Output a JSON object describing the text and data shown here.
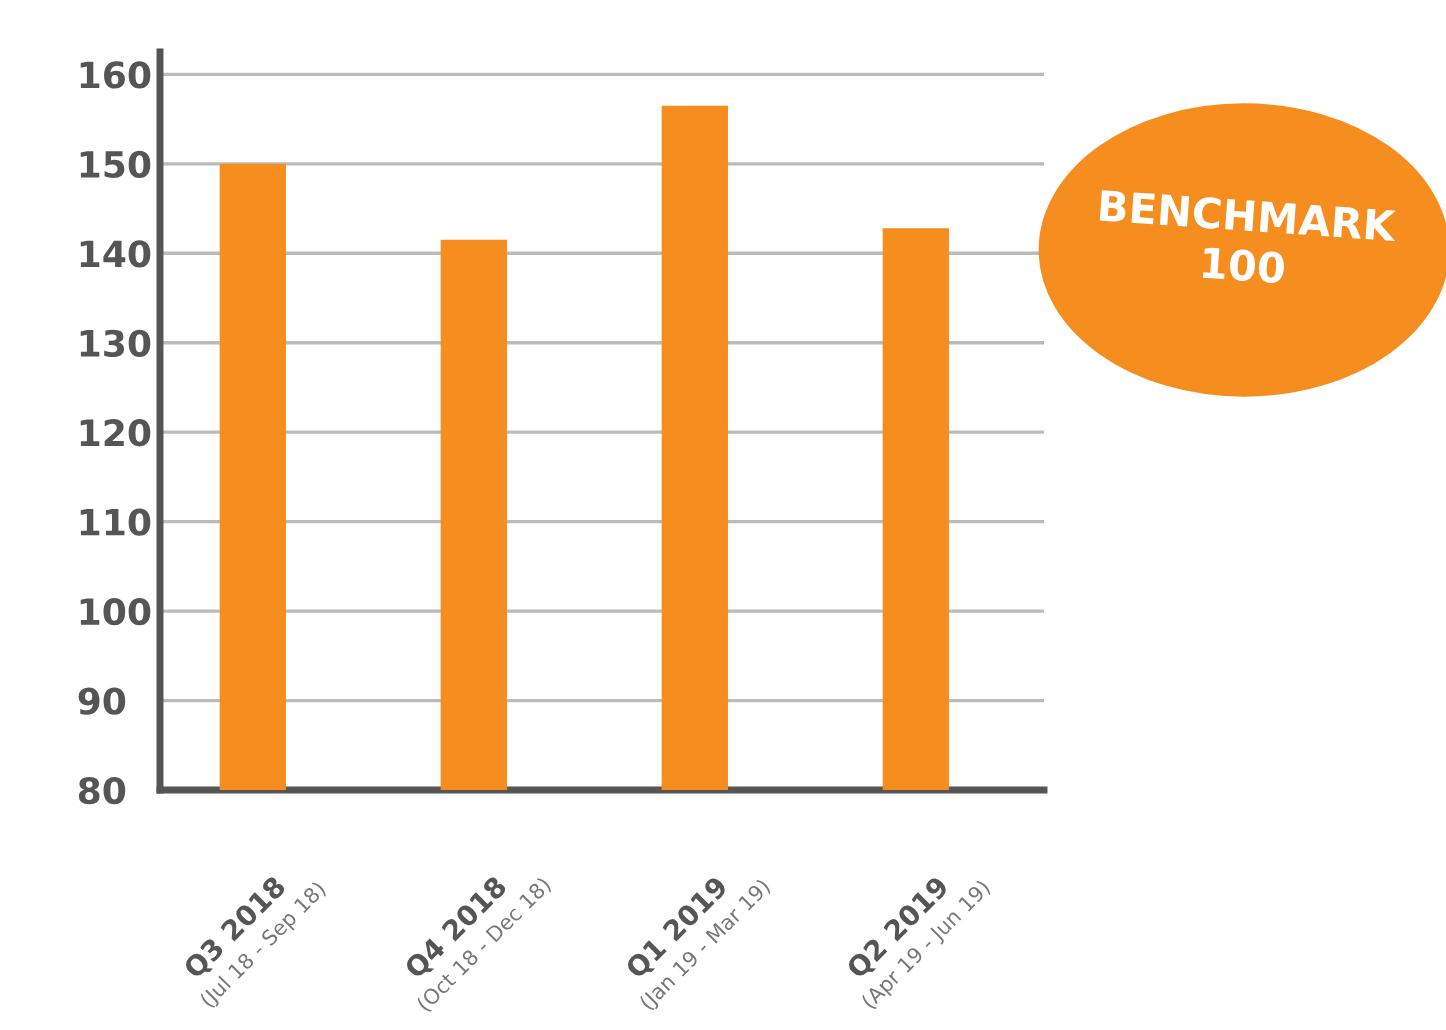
{
  "chart_data": {
    "type": "bar",
    "categories": [
      "Q3 2018\n(Jul 18 - Sep 18)",
      "Q4 2018\n(Oct 18 - Dec 18)",
      "Q1 2019\n(Jan 19 - Mar 19)",
      "Q2 2019\n(Apr 19 - Jun 19)"
    ],
    "values": [
      150,
      141.5,
      156.5,
      142.8
    ],
    "color": "#f58d1f",
    "ylim": [
      80,
      162.5
    ],
    "yticks": [
      80,
      90,
      100,
      110,
      120,
      130,
      140,
      150,
      160
    ],
    "grid": "y",
    "annotations": [
      "BENCHMARK\n100"
    ]
  }
}
